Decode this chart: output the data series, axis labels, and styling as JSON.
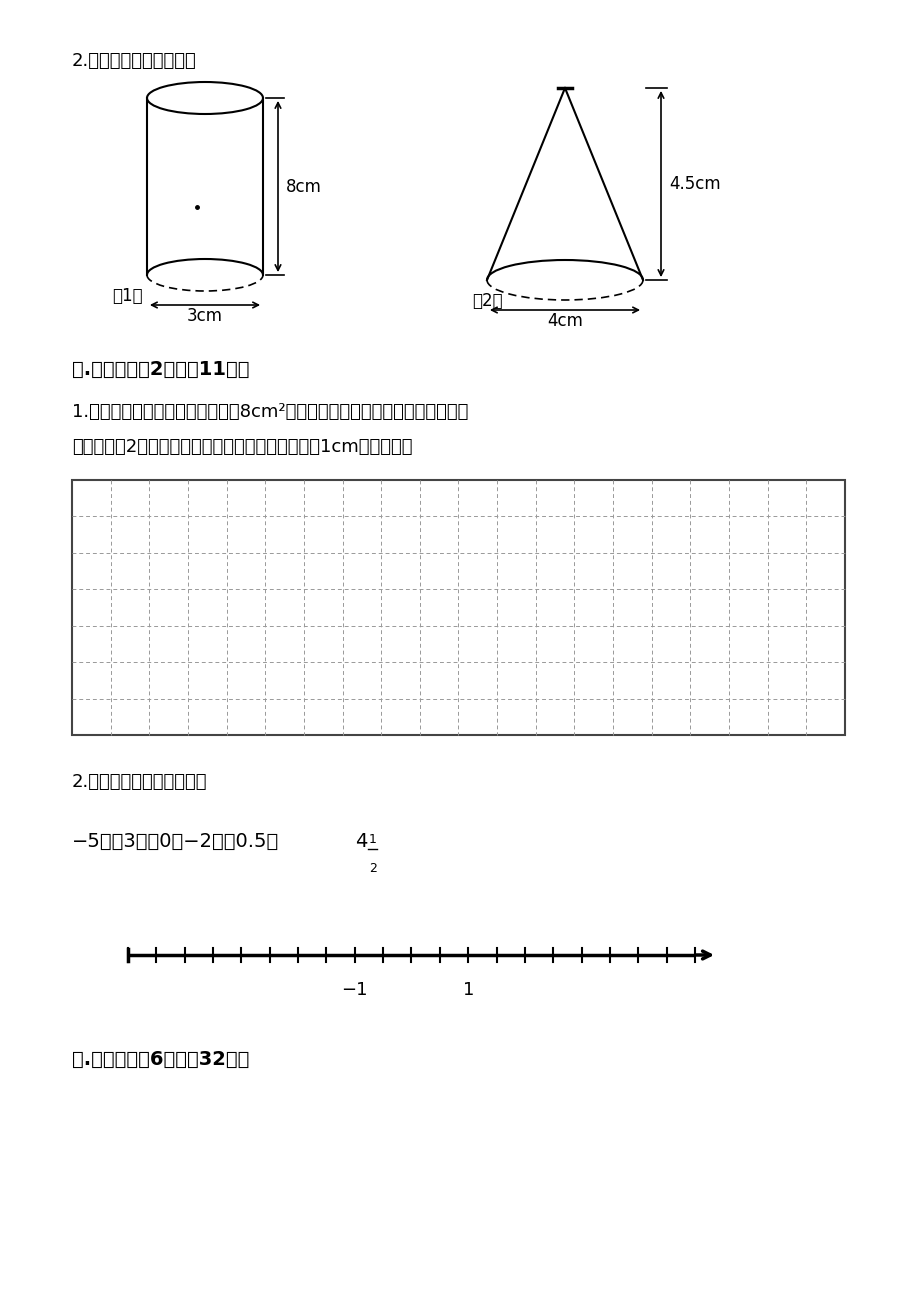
{
  "bg_color": "#ffffff",
  "section2_label": "2.计算下列图形的体积。",
  "cylinder_label1": "（1）",
  "cylinder_h_label": "8cm",
  "cylinder_r_label": "3cm",
  "cone_label2": "（2）",
  "cone_h_label": "4.5cm",
  "cone_r_label": "4cm",
  "section5_label": "五.作图题（共2题，共11分）",
  "q1_text1": "1.在下面的方格纸中画一个面积是8cm²的长方形，再把这个长方形的各边长扩",
  "q1_text2": "大到原来的2倍，画出图形。（每个方格代表边长为1cm的正方形）",
  "grid_cols": 20,
  "grid_rows": 7,
  "q2_text": "2.在直线上表示下列各数。",
  "number_line_text": "−5，\u00003，\u00000，−2，\u00000.5，",
  "num_line_label_neg1": "−1",
  "num_line_label_1": "1",
  "section6_label": "六.解答题（兲6题，共32分）"
}
